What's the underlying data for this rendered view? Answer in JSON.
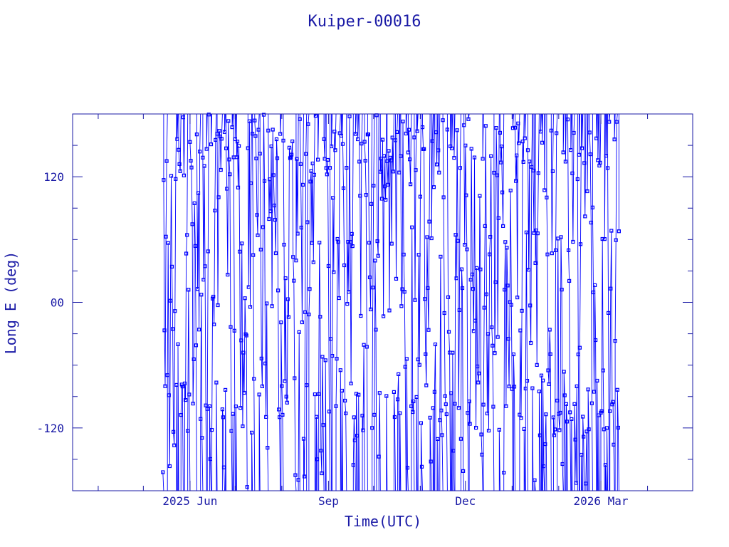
{
  "chart_data": {
    "type": "scatter",
    "title": "Kuiper-00016",
    "xlabel": "Time(UTC)",
    "ylabel": "Long E (deg)",
    "x_range": [
      "2025-03-15",
      "2026-05-01"
    ],
    "x_data_range": [
      "2025-05-14",
      "2026-03-13"
    ],
    "x_tick_labels": [
      {
        "date": "2025-06-01",
        "label": "2025 Jun"
      },
      {
        "date": "2025-09-01",
        "label": "Sep"
      },
      {
        "date": "2025-12-01",
        "label": "Dec"
      },
      {
        "date": "2026-03-01",
        "label": "2026 Mar"
      }
    ],
    "y_range": [
      -180,
      180
    ],
    "y_tick_labels": [
      {
        "value": 120,
        "label": "120"
      },
      {
        "value": 0,
        "label": "00"
      },
      {
        "value": -120,
        "label": "-120"
      }
    ],
    "marker": "square",
    "line": "connected, wrapping at ±180",
    "series_color": "#0000ff",
    "axis_color": "#1a1aa6",
    "grid": false,
    "description": "dense longitude track wrapping every ~1-2 days; points cluster near +150/+120 and -80/-100 deg"
  }
}
